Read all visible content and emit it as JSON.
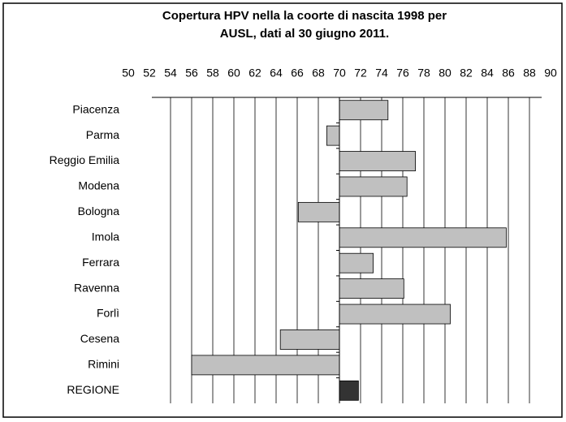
{
  "chart_data": {
    "type": "hbar",
    "title": [
      "Copertura HPV nella la coorte di nascita 1998 per",
      "AUSL,  dati al 30 giugno 2011."
    ],
    "categories": [
      "Piacenza",
      "Parma",
      "Reggio Emilia",
      "Modena",
      "Bologna",
      "Imola",
      "Ferrara",
      "Ravenna",
      "Forlì",
      "Cesena",
      "Rimini",
      "REGIONE"
    ],
    "values": [
      74.6,
      68.8,
      77.2,
      76.4,
      66.1,
      85.8,
      73.2,
      76.1,
      80.5,
      64.4,
      56.0,
      71.8
    ],
    "colors": [
      "#c0c0c0",
      "#c0c0c0",
      "#c0c0c0",
      "#c0c0c0",
      "#c0c0c0",
      "#c0c0c0",
      "#c0c0c0",
      "#c0c0c0",
      "#c0c0c0",
      "#c0c0c0",
      "#c0c0c0",
      "#333333"
    ],
    "xbase": 70,
    "xlim": [
      50,
      90
    ],
    "xticks": [
      50,
      52,
      54,
      56,
      58,
      60,
      62,
      64,
      66,
      68,
      70,
      72,
      74,
      76,
      78,
      80,
      82,
      84,
      86,
      88,
      90
    ],
    "grid": true
  }
}
